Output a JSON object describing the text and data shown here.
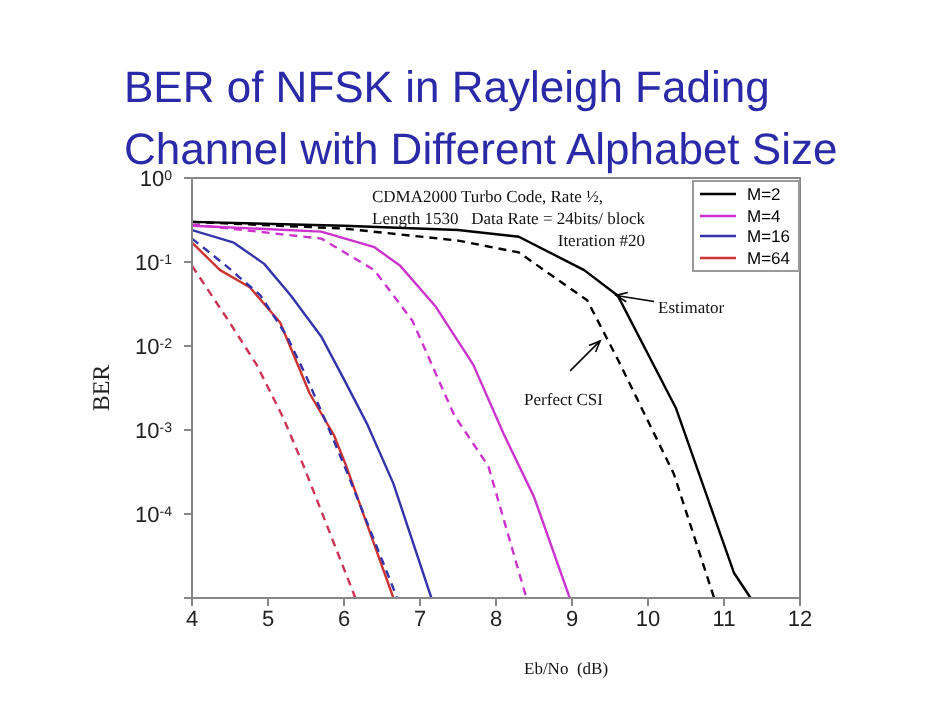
{
  "chart_data": {
    "type": "line",
    "title": "BER of NFSK in Rayleigh Fading Channel with Different Alphabet Size",
    "xlabel": "Eb/No  (dB)",
    "ylabel": "BER",
    "log": "y",
    "grid": false,
    "legend": "top right",
    "marker": "none",
    "xlim": [
      4,
      12
    ],
    "xticks": [
      4,
      5,
      6,
      7,
      8,
      9,
      10,
      11,
      12
    ],
    "ylim": [
      1e-05,
      1
    ],
    "yticks": [
      {
        "value": 1e-05,
        "label": null
      },
      {
        "value": 0.0001,
        "label": "10$^{-4}$"
      },
      {
        "value": 0.001,
        "label": "10$^{-3}$"
      },
      {
        "value": 0.01,
        "label": "10$^{-2}$"
      },
      {
        "value": 0.1,
        "label": "10$^{-1}$"
      },
      {
        "value": 1,
        "label": "10$^{0}$"
      }
    ],
    "annotations": [
      "CDMA2000 Turbo Code, Rate ½,",
      "Length 1530   Data Rate = 24bits/ block",
      "Iteration #20",
      {
        "text": "Estimator",
        "x": 9.58,
        "y": 0.04
      },
      {
        "text": "Perfect CSI",
        "x": 9.37,
        "y": 0.0115
      }
    ],
    "series": [
      {
        "name": "M=2",
        "color": "#000000",
        "line_style": "solid",
        "x": [
          4,
          6,
          7.5,
          8.3,
          9.16,
          9.6,
          10.37,
          11.13,
          11.35
        ],
        "values": [
          0.3,
          0.27,
          0.24,
          0.2,
          0.08,
          0.04,
          0.0018,
          2e-05,
          1e-05
        ]
      },
      {
        "name": "M=4",
        "color": "#cc33cc",
        "line_style": "solid",
        "x": [
          4,
          5.7,
          6.4,
          6.74,
          7.2,
          7.7,
          8.1,
          8.5,
          8.97
        ],
        "values": [
          0.27,
          0.23,
          0.15,
          0.09,
          0.03,
          0.006,
          0.0009,
          0.00016,
          1e-05
        ]
      },
      {
        "name": "M=16",
        "color": "#3333aa",
        "line_style": "solid",
        "x": [
          4,
          4.55,
          4.95,
          5.3,
          5.7,
          6.0,
          6.3,
          6.65,
          7.15
        ],
        "values": [
          0.24,
          0.17,
          0.095,
          0.04,
          0.013,
          0.004,
          0.0012,
          0.00023,
          1e-05
        ]
      },
      {
        "name": "M=64",
        "color": "#cc3333",
        "line_style": "solid",
        "x": [
          4,
          4.37,
          4.76,
          5.16,
          5.55,
          5.87,
          6.03,
          6.65
        ],
        "values": [
          0.17,
          0.08,
          0.05,
          0.019,
          0.0027,
          0.00086,
          0.00037,
          1e-05
        ]
      },
      {
        "color": "#000000",
        "line_style": "dashed",
        "x": [
          4,
          6,
          7.5,
          8.3,
          9.2,
          9.6,
          10.34,
          10.87
        ],
        "values": [
          0.3,
          0.25,
          0.18,
          0.13,
          0.035,
          0.007,
          0.0003,
          1e-05
        ]
      },
      {
        "color": "#cc33cc",
        "line_style": "dashed",
        "x": [
          4,
          5.7,
          6.4,
          6.9,
          7.45,
          7.9,
          8.4
        ],
        "values": [
          0.28,
          0.19,
          0.08,
          0.02,
          0.0015,
          0.00037,
          1e-05
        ]
      },
      {
        "color": "#3333aa",
        "line_style": "dashed",
        "x": [
          4,
          4.45,
          4.9,
          5.25,
          5.5,
          5.77,
          6.03,
          6.7
        ],
        "values": [
          0.19,
          0.09,
          0.04,
          0.013,
          0.0044,
          0.0012,
          0.00033,
          1e-05
        ]
      },
      {
        "color": "#cc3355",
        "line_style": "dashed",
        "x": [
          4,
          4.45,
          4.85,
          5.2,
          5.47,
          6.15
        ],
        "values": [
          0.09,
          0.022,
          0.006,
          0.0014,
          0.00037,
          1e-05
        ]
      }
    ]
  }
}
